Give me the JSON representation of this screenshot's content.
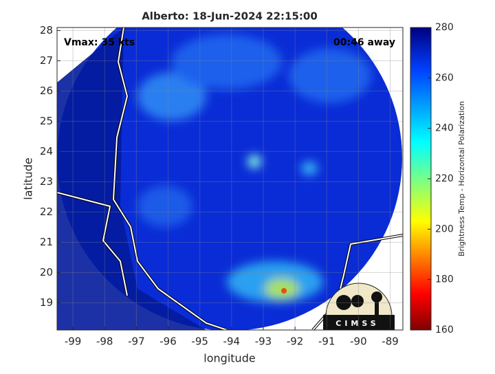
{
  "chart_data": {
    "type": "map",
    "title": "Alberto: 18-Jun-2024 22:15:00",
    "annotations": [
      "Vmax: 35 kts",
      "00:46 away"
    ],
    "xlabel": "longitude",
    "ylabel": "latitude",
    "xlim": [
      -99.5,
      -88.6
    ],
    "xticks": [
      -99,
      -98,
      -97,
      -96,
      -95,
      -94,
      -93,
      -92,
      -91,
      -90,
      -89
    ],
    "ylim": [
      18.1,
      28.1
    ],
    "yticks": [
      19,
      20,
      21,
      22,
      23,
      24,
      25,
      26,
      27,
      28
    ],
    "grid": true,
    "colorbar": {
      "label": "Brightness Temp - Horizontal Polarization",
      "lim": [
        160,
        280
      ],
      "ticks": [
        160,
        180,
        200,
        220,
        240,
        260,
        280
      ]
    },
    "logo": "CIMSS"
  }
}
